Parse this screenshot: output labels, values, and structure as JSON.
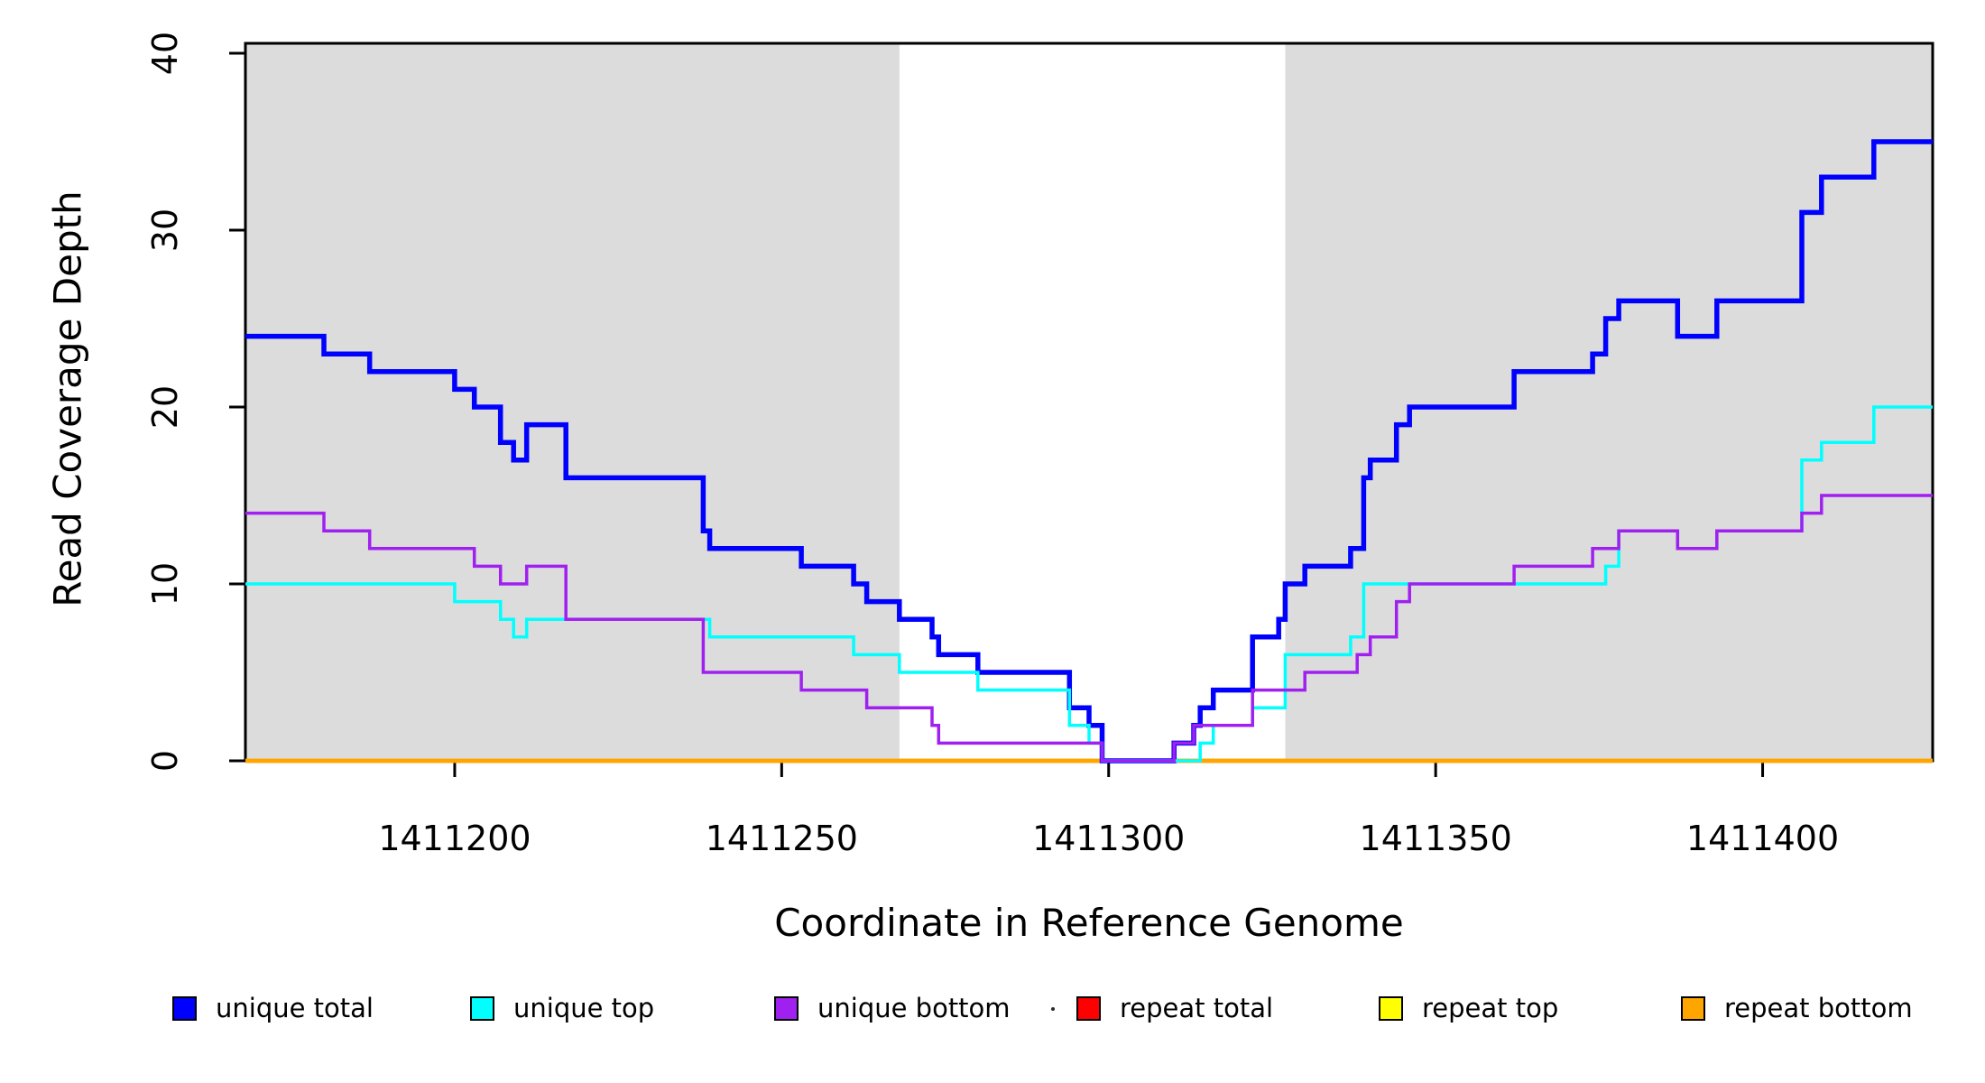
{
  "chart_data": {
    "type": "line",
    "subtype": "step-after-coverage-plot",
    "title": "",
    "xlabel": "Coordinate in Reference Genome",
    "ylabel": "Read Coverage Depth",
    "xlim": [
      1411168,
      1411426
    ],
    "ylim": [
      0,
      40
    ],
    "x_ticks": [
      1411200,
      1411250,
      1411300,
      1411350,
      1411400
    ],
    "y_ticks": [
      0,
      10,
      20,
      30,
      40
    ],
    "grid": false,
    "shade_color": "#dcdcdc",
    "shaded_regions": [
      {
        "from": 1411168,
        "to": 1411268
      },
      {
        "from": 1411327,
        "to": 1411426
      }
    ],
    "series": [
      {
        "name": "repeat total",
        "color": "#ff0000",
        "width": 4.5,
        "points": [
          [
            1411168,
            0
          ]
        ]
      },
      {
        "name": "repeat top",
        "color": "#ffff00",
        "width": 4.5,
        "points": [
          [
            1411168,
            0
          ]
        ]
      },
      {
        "name": "repeat bottom",
        "color": "#ffa500",
        "width": 4.5,
        "points": [
          [
            1411168,
            0
          ]
        ]
      },
      {
        "name": "unique total",
        "color": "#0000ff",
        "width": 5.5,
        "points": [
          [
            1411168,
            24
          ],
          [
            1411180,
            23
          ],
          [
            1411187,
            22
          ],
          [
            1411200,
            21
          ],
          [
            1411203,
            20
          ],
          [
            1411207,
            18
          ],
          [
            1411209,
            17
          ],
          [
            1411211,
            19
          ],
          [
            1411217,
            16
          ],
          [
            1411238,
            13
          ],
          [
            1411239,
            12
          ],
          [
            1411253,
            11
          ],
          [
            1411261,
            10
          ],
          [
            1411263,
            9
          ],
          [
            1411268,
            8
          ],
          [
            1411273,
            7
          ],
          [
            1411274,
            6
          ],
          [
            1411280,
            5
          ],
          [
            1411294,
            3
          ],
          [
            1411297,
            2
          ],
          [
            1411299,
            0
          ],
          [
            1411310,
            1
          ],
          [
            1411313,
            2
          ],
          [
            1411314,
            3
          ],
          [
            1411316,
            4
          ],
          [
            1411322,
            7
          ],
          [
            1411326,
            8
          ],
          [
            1411327,
            10
          ],
          [
            1411330,
            11
          ],
          [
            1411337,
            12
          ],
          [
            1411339,
            16
          ],
          [
            1411340,
            17
          ],
          [
            1411344,
            19
          ],
          [
            1411346,
            20
          ],
          [
            1411362,
            22
          ],
          [
            1411374,
            23
          ],
          [
            1411376,
            25
          ],
          [
            1411378,
            26
          ],
          [
            1411387,
            24
          ],
          [
            1411393,
            26
          ],
          [
            1411406,
            31
          ],
          [
            1411409,
            33
          ],
          [
            1411417,
            35
          ]
        ]
      },
      {
        "name": "unique top",
        "color": "#00ffff",
        "width": 3.5,
        "points": [
          [
            1411168,
            10
          ],
          [
            1411200,
            9
          ],
          [
            1411207,
            8
          ],
          [
            1411209,
            7
          ],
          [
            1411211,
            8
          ],
          [
            1411239,
            7
          ],
          [
            1411261,
            6
          ],
          [
            1411268,
            5
          ],
          [
            1411280,
            4
          ],
          [
            1411294,
            2
          ],
          [
            1411297,
            1
          ],
          [
            1411299,
            0
          ],
          [
            1411314,
            1
          ],
          [
            1411316,
            2
          ],
          [
            1411322,
            3
          ],
          [
            1411327,
            6
          ],
          [
            1411337,
            7
          ],
          [
            1411339,
            10
          ],
          [
            1411376,
            11
          ],
          [
            1411378,
            13
          ],
          [
            1411387,
            12
          ],
          [
            1411393,
            13
          ],
          [
            1411406,
            17
          ],
          [
            1411409,
            18
          ],
          [
            1411417,
            20
          ]
        ]
      },
      {
        "name": "unique bottom",
        "color": "#a020f0",
        "width": 3.5,
        "points": [
          [
            1411168,
            14
          ],
          [
            1411180,
            13
          ],
          [
            1411187,
            12
          ],
          [
            1411203,
            11
          ],
          [
            1411207,
            10
          ],
          [
            1411211,
            11
          ],
          [
            1411217,
            8
          ],
          [
            1411238,
            5
          ],
          [
            1411253,
            4
          ],
          [
            1411263,
            3
          ],
          [
            1411273,
            2
          ],
          [
            1411274,
            1
          ],
          [
            1411299,
            0
          ],
          [
            1411310,
            1
          ],
          [
            1411313,
            2
          ],
          [
            1411322,
            4
          ],
          [
            1411330,
            5
          ],
          [
            1411338,
            6
          ],
          [
            1411340,
            7
          ],
          [
            1411344,
            9
          ],
          [
            1411346,
            10
          ],
          [
            1411362,
            11
          ],
          [
            1411374,
            12
          ],
          [
            1411378,
            13
          ],
          [
            1411387,
            12
          ],
          [
            1411393,
            13
          ],
          [
            1411406,
            14
          ],
          [
            1411409,
            15
          ]
        ]
      }
    ],
    "legend_position": "bottom",
    "legend": [
      {
        "label": "unique total",
        "color": "#0000ff"
      },
      {
        "label": "unique top",
        "color": "#00ffff"
      },
      {
        "label": "unique bottom",
        "color": "#a020f0"
      },
      {
        "label": "repeat total",
        "color": "#ff0000"
      },
      {
        "label": "repeat top",
        "color": "#ffff00"
      },
      {
        "label": "repeat bottom",
        "color": "#ffa500"
      }
    ]
  }
}
